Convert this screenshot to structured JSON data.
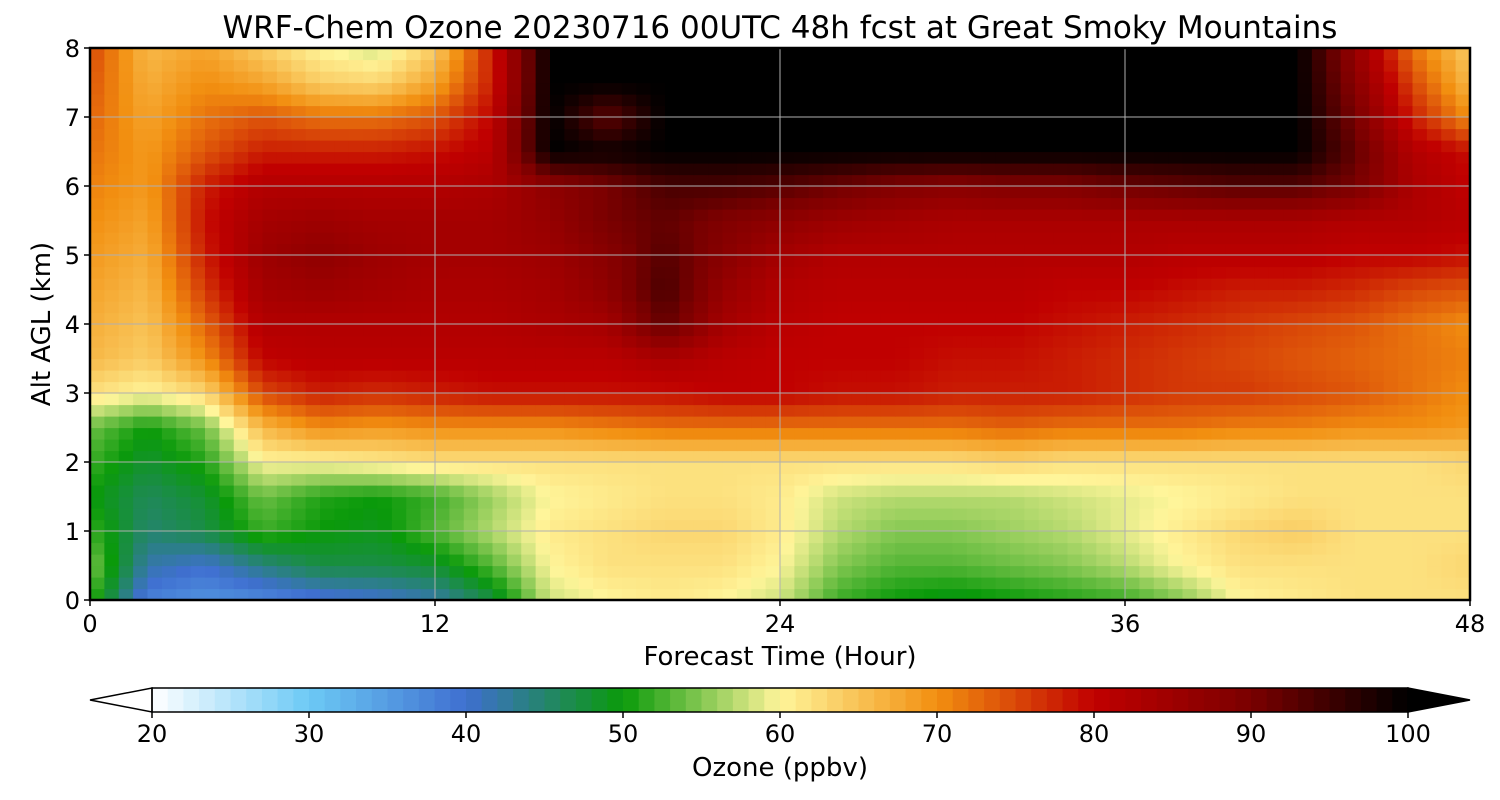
{
  "chart_data": {
    "type": "heatmap",
    "title": "WRF-Chem Ozone  20230716 00UTC 48h fcst at Great Smoky Mountains",
    "xlabel": "Forecast Time (Hour)",
    "ylabel": "Alt AGL (km)",
    "xlim": [
      0,
      48
    ],
    "ylim": [
      0,
      8
    ],
    "xticks": [
      0,
      12,
      24,
      36,
      48
    ],
    "yticks": [
      0,
      1,
      2,
      3,
      4,
      5,
      6,
      7,
      8
    ],
    "grid": true,
    "x": [
      0,
      2,
      4,
      6,
      8,
      10,
      12,
      14,
      16,
      18,
      20,
      22,
      24,
      26,
      28,
      30,
      32,
      34,
      36,
      38,
      40,
      42,
      44,
      46,
      48
    ],
    "y": [
      0,
      0.5,
      1,
      1.5,
      2,
      2.5,
      3,
      3.5,
      4,
      4.5,
      5,
      5.5,
      6,
      6.5,
      7,
      7.5,
      8
    ],
    "z": [
      [
        52,
        38,
        36,
        37,
        39,
        40,
        42,
        47,
        58,
        60,
        61,
        60,
        58,
        52,
        50,
        49,
        50,
        51,
        52,
        55,
        60,
        61,
        62,
        62,
        62
      ],
      [
        55,
        42,
        40,
        44,
        47,
        47,
        48,
        53,
        60,
        62,
        62,
        62,
        60,
        55,
        53,
        53,
        54,
        55,
        57,
        60,
        62,
        62,
        62,
        62,
        63
      ],
      [
        52,
        45,
        47,
        52,
        50,
        49,
        53,
        57,
        61,
        62,
        63,
        63,
        61,
        57,
        55,
        55,
        56,
        57,
        59,
        61,
        63,
        64,
        62,
        62,
        62
      ],
      [
        50,
        46,
        48,
        54,
        51,
        50,
        52,
        56,
        60,
        61,
        62,
        62,
        61,
        58,
        57,
        57,
        57,
        58,
        59,
        60,
        61,
        62,
        62,
        62,
        62
      ],
      [
        52,
        48,
        51,
        60,
        60,
        61,
        62,
        62,
        62,
        62,
        62,
        62,
        62,
        62,
        62,
        62,
        63,
        62,
        62,
        62,
        62,
        62,
        62,
        62,
        63
      ],
      [
        54,
        50,
        54,
        66,
        70,
        69,
        70,
        70,
        70,
        71,
        72,
        72,
        72,
        72,
        72,
        72,
        73,
        72,
        72,
        72,
        71,
        71,
        70,
        70,
        69
      ],
      [
        62,
        60,
        63,
        75,
        78,
        77,
        78,
        79,
        79,
        79,
        79,
        80,
        80,
        79,
        79,
        78,
        78,
        78,
        77,
        76,
        76,
        75,
        74,
        72,
        70
      ],
      [
        66,
        64,
        70,
        80,
        81,
        81,
        81,
        81,
        81,
        81,
        83,
        81,
        80,
        80,
        80,
        79,
        79,
        78,
        77,
        76,
        75,
        74,
        73,
        72,
        71
      ],
      [
        67,
        65,
        73,
        82,
        82,
        82,
        82,
        82,
        83,
        84,
        92,
        84,
        81,
        80,
        80,
        80,
        80,
        79,
        78,
        77,
        76,
        75,
        74,
        72,
        70
      ],
      [
        68,
        66,
        76,
        84,
        85,
        84,
        83,
        83,
        84,
        87,
        94,
        86,
        82,
        81,
        81,
        81,
        81,
        80,
        80,
        79,
        78,
        78,
        77,
        75,
        74
      ],
      [
        69,
        67,
        78,
        85,
        87,
        85,
        84,
        84,
        85,
        88,
        93,
        88,
        84,
        82,
        82,
        82,
        82,
        82,
        82,
        81,
        81,
        81,
        80,
        80,
        79
      ],
      [
        70,
        68,
        79,
        84,
        85,
        84,
        84,
        84,
        86,
        90,
        92,
        89,
        87,
        85,
        84,
        83,
        83,
        83,
        83,
        83,
        83,
        83,
        82,
        82,
        81
      ],
      [
        71,
        69,
        78,
        82,
        82,
        82,
        82,
        83,
        87,
        90,
        94,
        94,
        93,
        91,
        89,
        88,
        89,
        89,
        91,
        92,
        93,
        93,
        90,
        83,
        80
      ],
      [
        72,
        69,
        74,
        78,
        78,
        78,
        79,
        81,
        100,
        99,
        100,
        100,
        100,
        100,
        100,
        100,
        100,
        100,
        100,
        100,
        100,
        100,
        92,
        82,
        79
      ],
      [
        73,
        68,
        72,
        74,
        72,
        72,
        74,
        80,
        100,
        92,
        100,
        100,
        100,
        100,
        100,
        100,
        100,
        100,
        100,
        100,
        100,
        100,
        90,
        78,
        70
      ],
      [
        74,
        67,
        70,
        68,
        64,
        63,
        68,
        78,
        100,
        100,
        100,
        100,
        100,
        100,
        100,
        100,
        100,
        100,
        100,
        100,
        100,
        100,
        88,
        75,
        66
      ],
      [
        75,
        66,
        68,
        64,
        60,
        58,
        64,
        78,
        100,
        100,
        100,
        100,
        100,
        100,
        100,
        100,
        100,
        100,
        100,
        100,
        100,
        100,
        86,
        72,
        64
      ]
    ],
    "colorbar": {
      "label": "Ozone  (ppbv)",
      "ticks": [
        20,
        30,
        40,
        50,
        60,
        70,
        80,
        90,
        100
      ],
      "min": 20,
      "max": 100,
      "extend": "both",
      "colors": [
        "#ffffff",
        "#6cc9f5",
        "#3f6fd0",
        "#0a9a0a",
        "#fff59a",
        "#f28f10",
        "#c00000",
        "#7a0000",
        "#000000"
      ]
    }
  }
}
